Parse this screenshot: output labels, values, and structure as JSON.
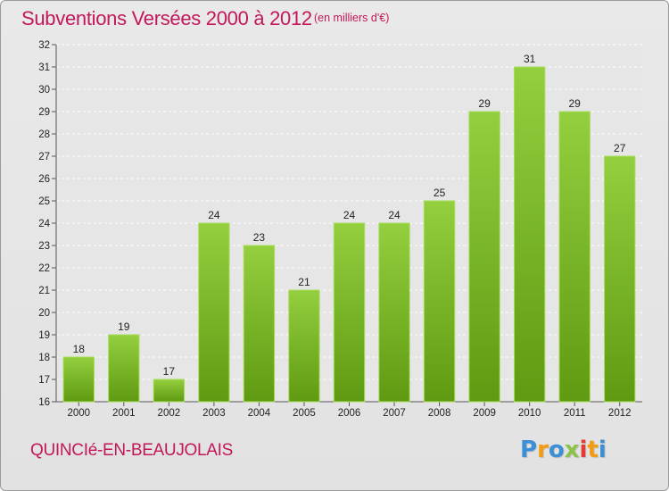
{
  "header": {
    "title": "Subventions Versées 2000 à 2012",
    "subtitle": "(en milliers d'€)"
  },
  "footer": {
    "town": "QUINCIé-EN-BEAUJOLAIS",
    "logo": [
      "P",
      "r",
      "o",
      "x",
      "i",
      "t",
      "i"
    ]
  },
  "colors": {
    "accent": "#c2185b",
    "bar_top": "#93cf3e",
    "bar_bottom": "#5f9a12",
    "bar_edge": "#a8dd5a"
  },
  "chart_data": {
    "type": "bar",
    "title": "Subventions Versées 2000 à 2012",
    "subtitle": "(en milliers d'€)",
    "categories": [
      "2000",
      "2001",
      "2002",
      "2003",
      "2004",
      "2005",
      "2006",
      "2007",
      "2008",
      "2009",
      "2010",
      "2011",
      "2012"
    ],
    "values": [
      18,
      19,
      17,
      24,
      23,
      21,
      24,
      24,
      25,
      29,
      31,
      29,
      27
    ],
    "ylim": [
      16,
      32
    ],
    "yticks": [
      16,
      17,
      18,
      19,
      20,
      21,
      22,
      23,
      24,
      25,
      26,
      27,
      28,
      29,
      30,
      31,
      32
    ],
    "grid": true,
    "legend": "none"
  }
}
